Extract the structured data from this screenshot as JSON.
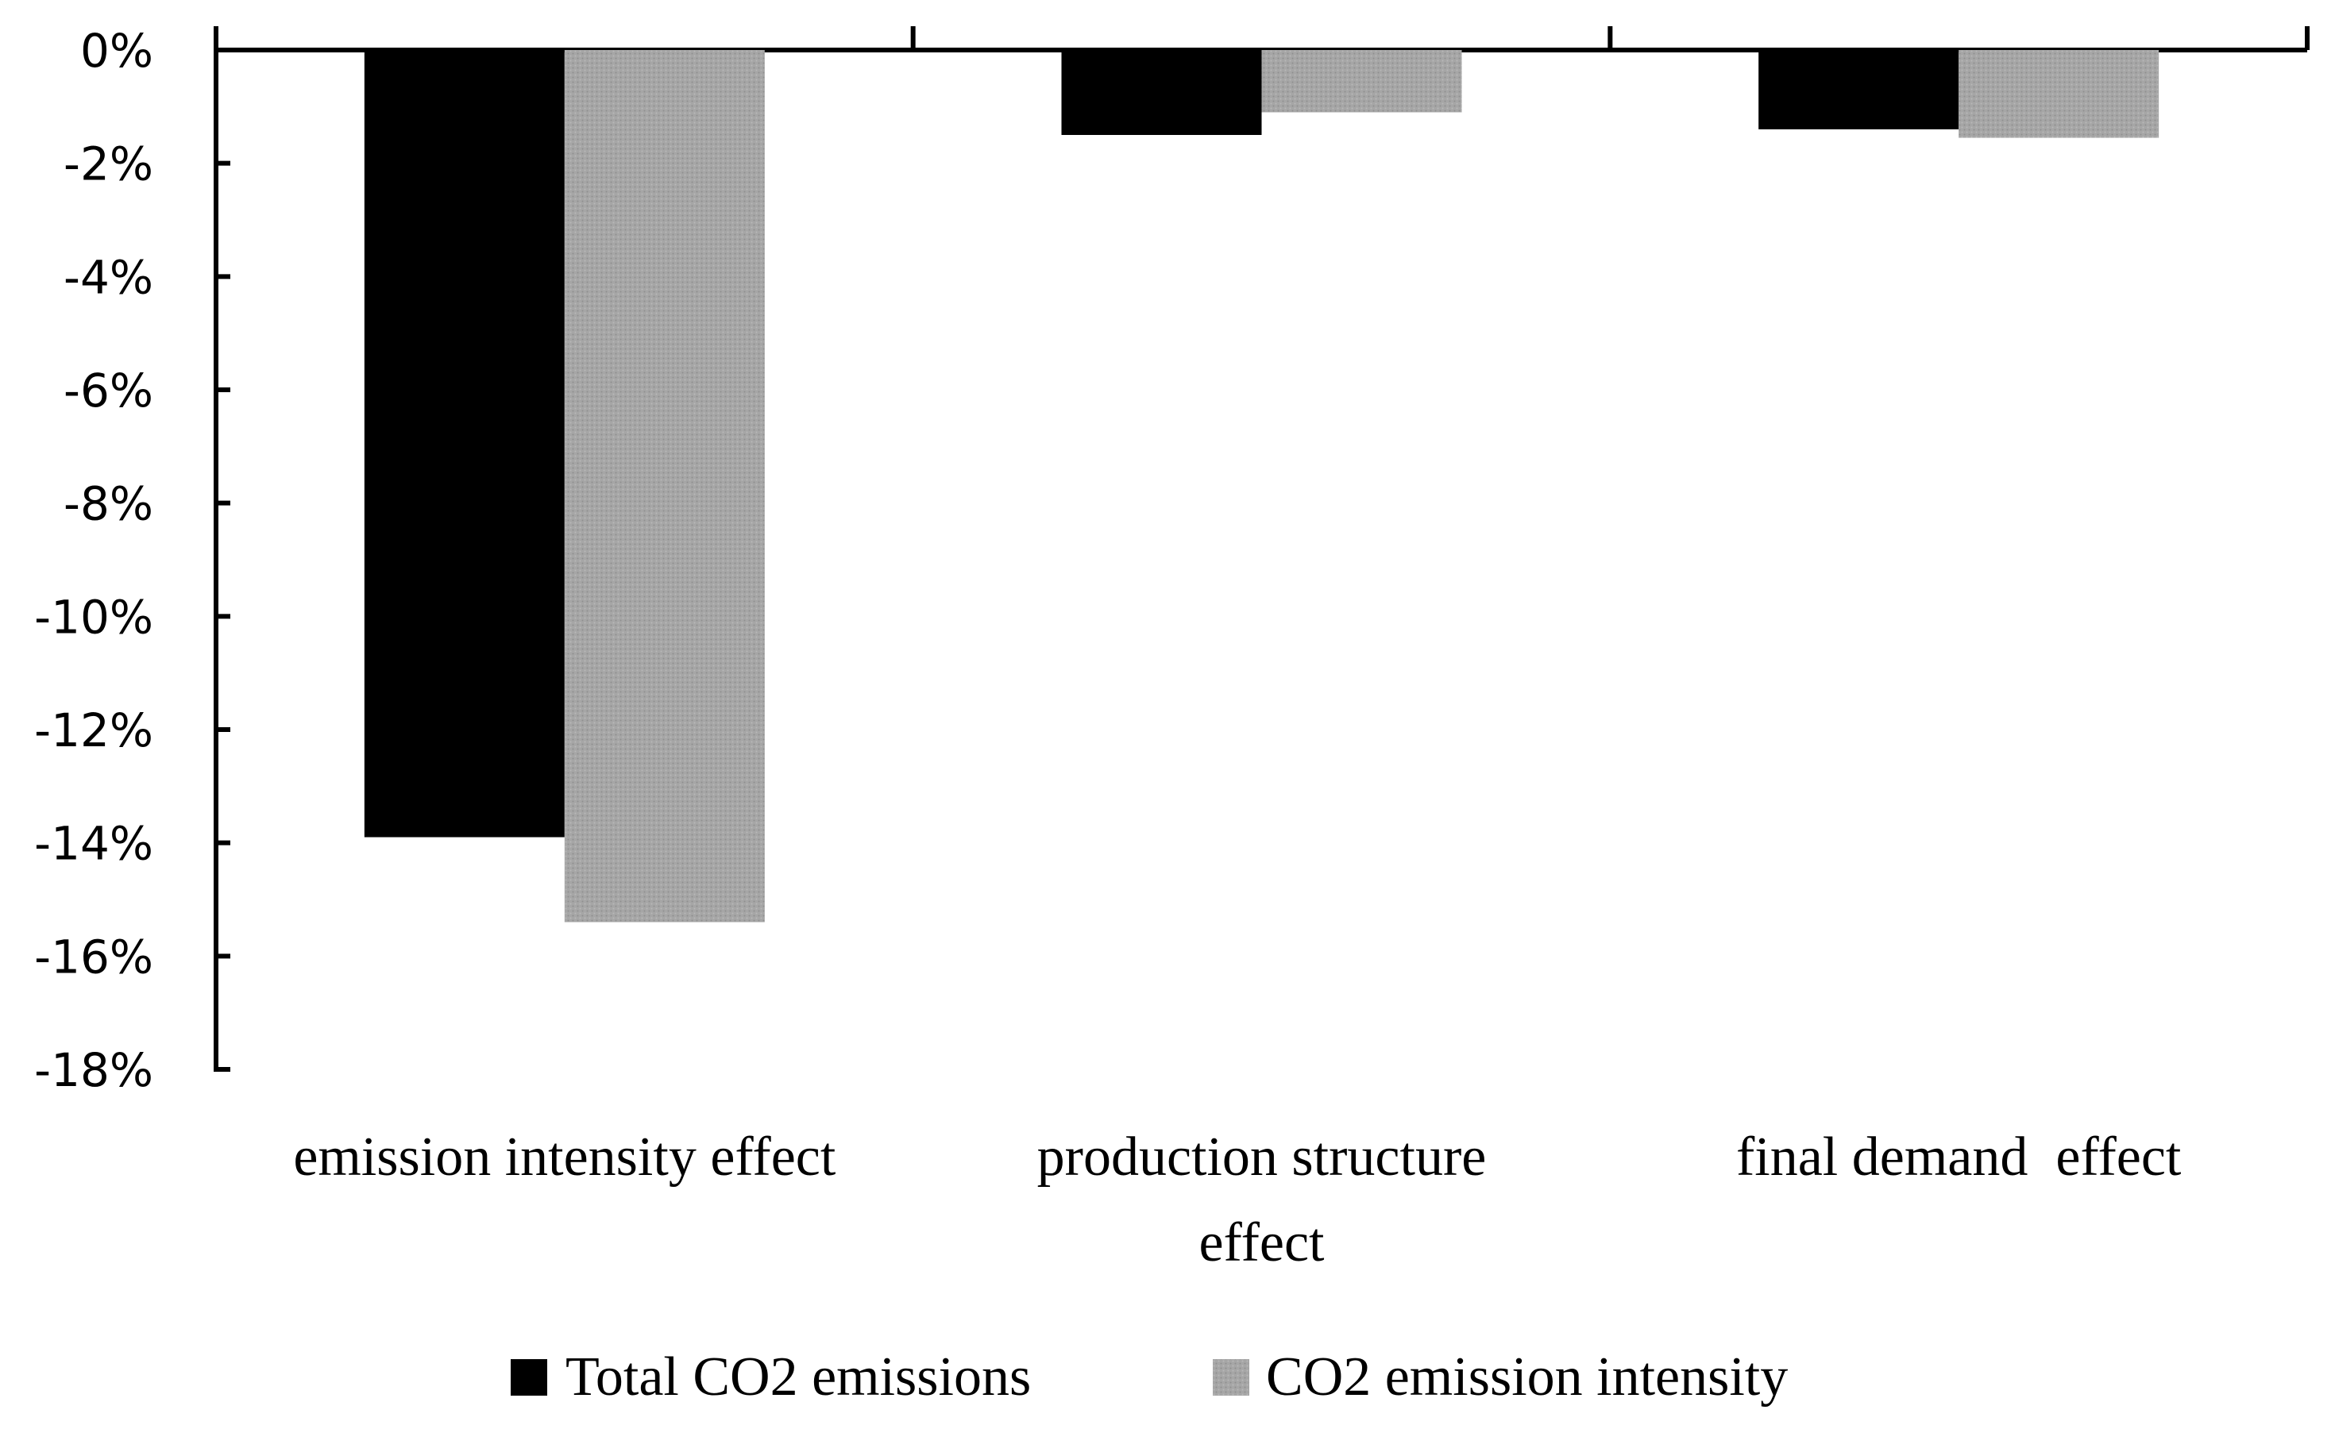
{
  "chart_data": {
    "type": "bar",
    "title": "",
    "xlabel": "",
    "ylabel": "",
    "ylim": [
      -18,
      0
    ],
    "yticks": [
      0,
      -2,
      -4,
      -6,
      -8,
      -10,
      -12,
      -14,
      -16,
      -18
    ],
    "ytick_labels": [
      "0%",
      "-2%",
      "-4%",
      "-6%",
      "-8%",
      "-10%",
      "-12%",
      "-14%",
      "-16%",
      "-18%"
    ],
    "categories": [
      [
        "emission intensity effect"
      ],
      [
        "production structure",
        "effect"
      ],
      [
        "final demand  effect"
      ]
    ],
    "series": [
      {
        "name": "Total CO2 emissions",
        "color": "#000000",
        "values": [
          -13.9,
          -1.5,
          -1.4
        ]
      },
      {
        "name": "CO2 emission intensity",
        "color": "#a6a6a6",
        "values": [
          -15.4,
          -1.1,
          -1.55
        ]
      }
    ],
    "legend": {
      "position": "bottom-center"
    },
    "grid": false
  }
}
